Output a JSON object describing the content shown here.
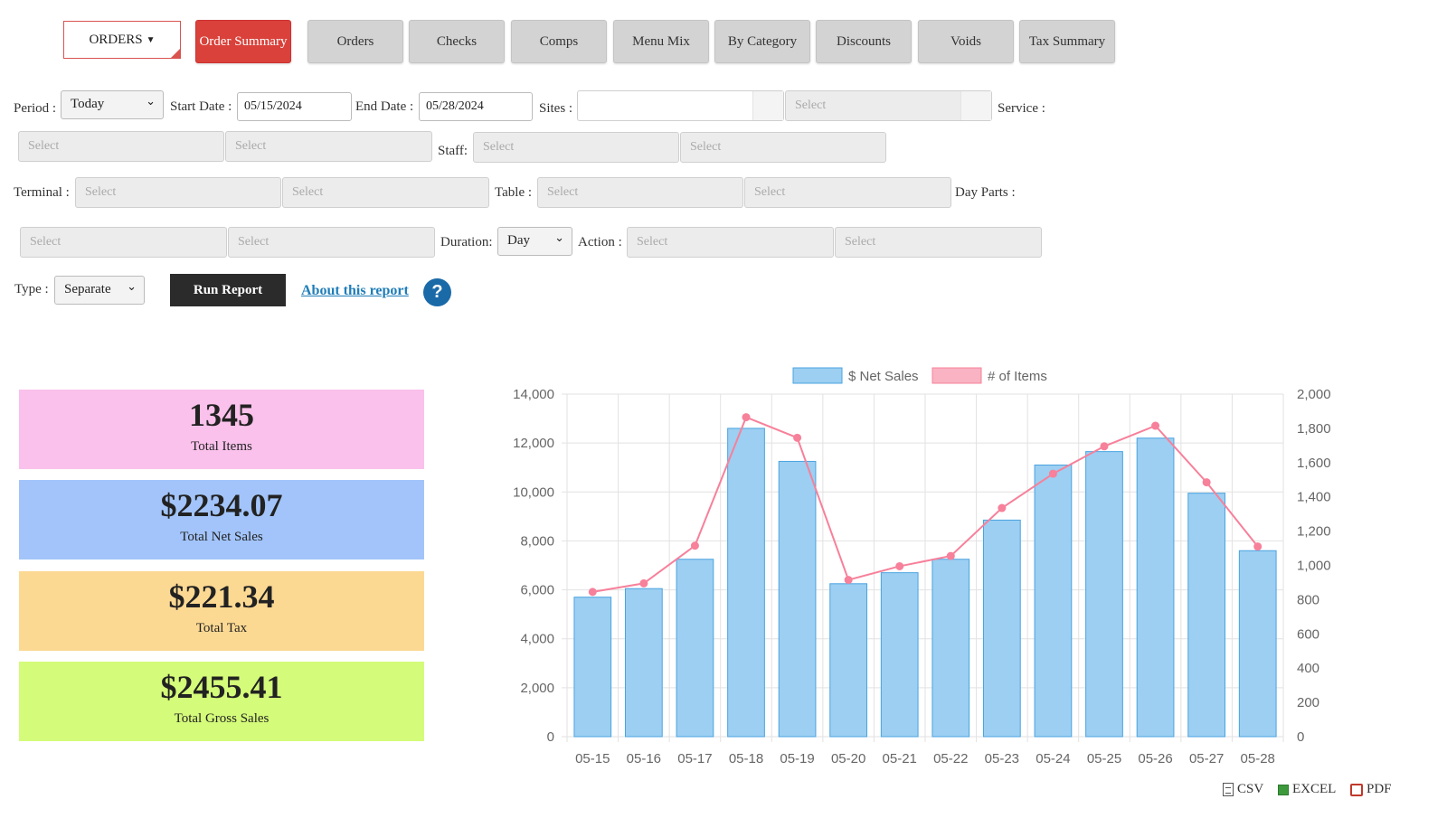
{
  "nav": {
    "dropdown_label": "ORDERS",
    "tabs": [
      {
        "label": "Order Summary",
        "active": true
      },
      {
        "label": "Orders"
      },
      {
        "label": "Checks"
      },
      {
        "label": "Comps"
      },
      {
        "label": "Menu Mix"
      },
      {
        "label": "By Category"
      },
      {
        "label": "Discounts"
      },
      {
        "label": "Voids"
      },
      {
        "label": "Tax Summary"
      }
    ]
  },
  "filters": {
    "period_label": "Period :",
    "period_value": "Today",
    "start_label": "Start Date :",
    "start_value": "05/15/2024",
    "end_label": "End Date :",
    "end_value": "05/28/2024",
    "sites_label": "Sites :",
    "service_label": "Service :",
    "staff_label": "Staff:",
    "terminal_label": "Terminal :",
    "table_label": "Table :",
    "dayparts_label": "Day Parts :",
    "duration_label": "Duration:",
    "duration_value": "Day",
    "action_label": "Action :",
    "type_label": "Type :",
    "type_value": "Separate",
    "select_placeholder": "Select"
  },
  "actions": {
    "run_report": "Run Report",
    "about": "About this report",
    "help_glyph": "?"
  },
  "summary": [
    {
      "value": "1345",
      "caption": "Total Items",
      "color": "#f9c1eb"
    },
    {
      "value": "$2234.07",
      "caption": "Total Net Sales",
      "color": "#a2c4fa"
    },
    {
      "value": "$221.34",
      "caption": "Total Tax",
      "color": "#fcd993"
    },
    {
      "value": "$2455.41",
      "caption": "Total Gross Sales",
      "color": "#d4fb79"
    }
  ],
  "exports": {
    "csv": "CSV",
    "excel": "EXCEL",
    "pdf": "PDF"
  },
  "colors": {
    "accent": "#d9413a",
    "bar_fill": "#9ccff2",
    "bar_stroke": "#4aa3e0",
    "line": "#f7809a"
  },
  "chart_data": {
    "type": "bar",
    "categories": [
      "05-15",
      "05-16",
      "05-17",
      "05-18",
      "05-19",
      "05-20",
      "05-21",
      "05-22",
      "05-23",
      "05-24",
      "05-25",
      "05-26",
      "05-27",
      "05-28"
    ],
    "series": [
      {
        "name": "$ Net Sales",
        "type": "bar",
        "axis": "left",
        "values": [
          5700,
          6050,
          7250,
          12600,
          11250,
          6250,
          6700,
          7250,
          8850,
          11100,
          11650,
          12200,
          9950,
          7600
        ]
      },
      {
        "name": "# of Items",
        "type": "line",
        "axis": "right",
        "values": [
          845,
          895,
          1115,
          1865,
          1745,
          915,
          995,
          1055,
          1335,
          1535,
          1695,
          1815,
          1485,
          1110
        ]
      }
    ],
    "y_left": {
      "min": 0,
      "max": 14000,
      "step": 2000
    },
    "y_right": {
      "min": 0,
      "max": 2000,
      "step": 200
    },
    "legend_position": "top",
    "grid": true
  }
}
